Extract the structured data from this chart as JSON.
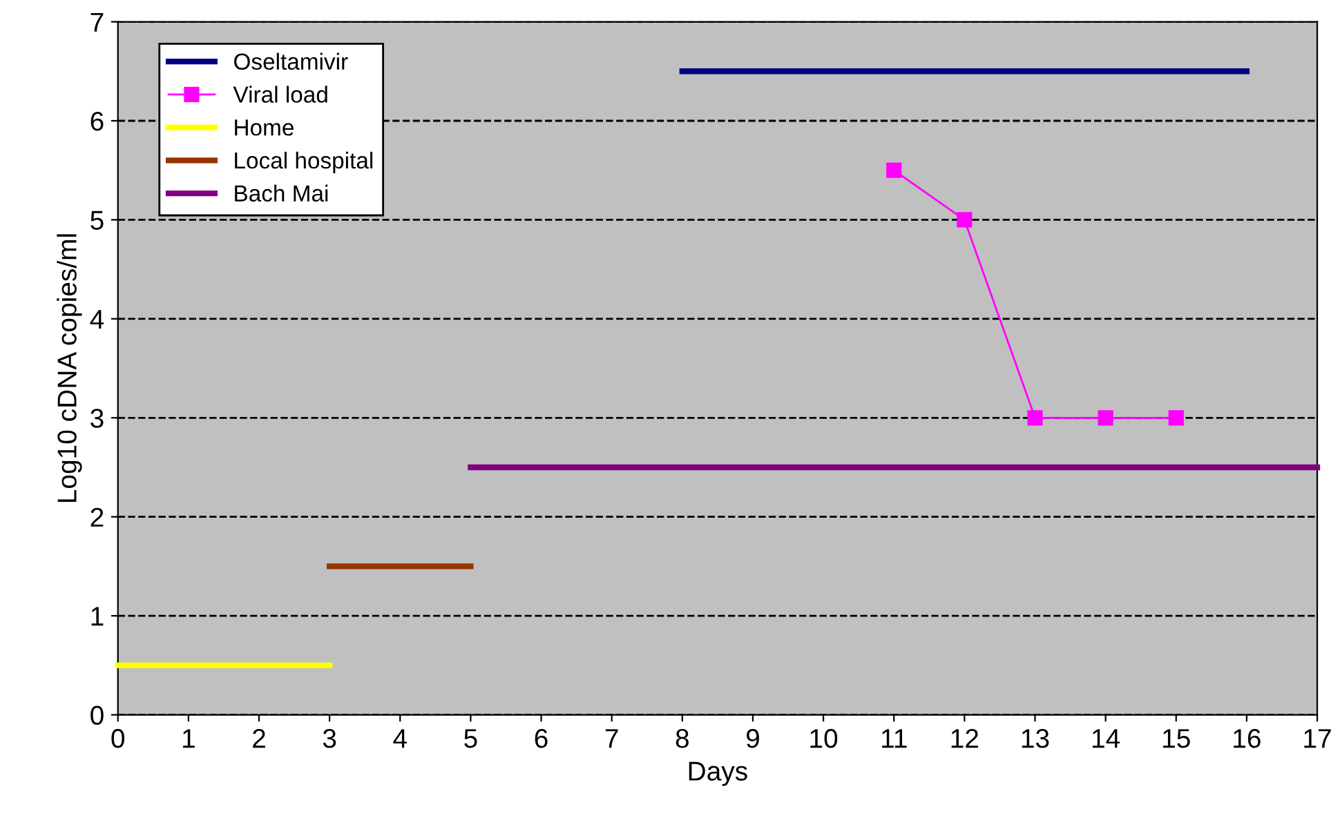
{
  "chart_data": {
    "type": "line",
    "xlabel": "Days",
    "ylabel": "Log10 cDNA copies/ml",
    "xlim": [
      0,
      17
    ],
    "xticks": [
      0,
      1,
      2,
      3,
      4,
      5,
      6,
      7,
      8,
      9,
      10,
      11,
      12,
      13,
      14,
      15,
      16,
      17
    ],
    "ylim": [
      0,
      7
    ],
    "yticks": [
      0,
      1,
      2,
      3,
      4,
      5,
      6,
      7
    ],
    "grid": "y",
    "legend": "top left",
    "series": [
      {
        "name": "Oseltamivir",
        "color": "#000080",
        "x": [
          8,
          16
        ],
        "values": [
          6.5,
          6.5
        ],
        "marker": "none"
      },
      {
        "name": "Viral load",
        "color": "#ff00ff",
        "x": [
          11,
          12,
          13,
          14,
          15
        ],
        "values": [
          5.5,
          5,
          3,
          3,
          3
        ],
        "marker": "square"
      },
      {
        "name": "Home",
        "color": "#ffff00",
        "x": [
          0,
          3
        ],
        "values": [
          0.5,
          0.5
        ],
        "marker": "none"
      },
      {
        "name": "Local hospital",
        "color": "#993300",
        "x": [
          3,
          5
        ],
        "values": [
          1.5,
          1.5
        ],
        "marker": "none"
      },
      {
        "name": "Bach Mai",
        "color": "#800080",
        "x": [
          5,
          17
        ],
        "values": [
          2.5,
          2.5
        ],
        "marker": "none"
      }
    ]
  }
}
